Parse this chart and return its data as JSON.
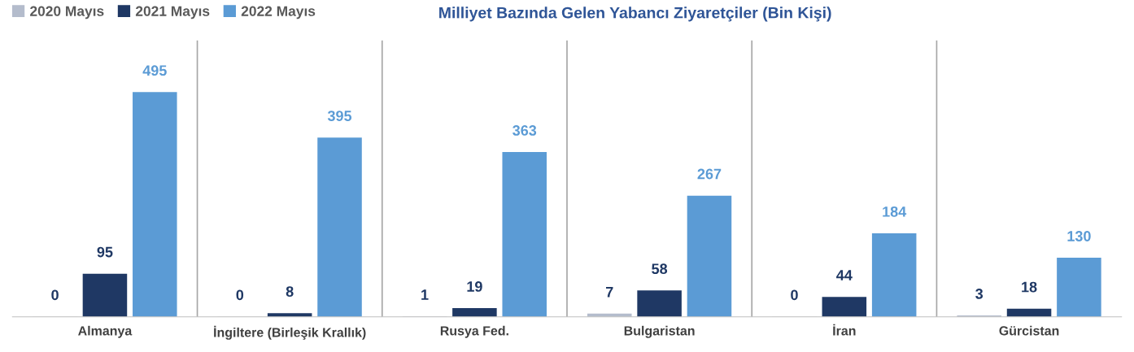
{
  "chart_data": {
    "type": "bar",
    "title": "Milliyet Bazında Gelen Yabancı Ziyaretçiler (Bin Kişi)",
    "categories": [
      "Almanya",
      "İngiltere (Birleşik Krallık)",
      "Rusya Fed.",
      "Bulgaristan",
      "İran",
      "Gürcistan"
    ],
    "series": [
      {
        "name": "2020 Mayıs",
        "color": "#b4bccc",
        "values": [
          0.4,
          0.4,
          1,
          7,
          0.4,
          3
        ],
        "value_labels": [
          "0",
          "0",
          "1",
          "7",
          "0",
          "3"
        ]
      },
      {
        "name": "2021 Mayıs",
        "color": "#1f3864",
        "values": [
          95,
          8,
          19,
          58,
          44,
          18
        ]
      },
      {
        "name": "2022 Mayıs",
        "color": "#5b9bd5",
        "values": [
          495,
          395,
          363,
          267,
          184,
          130
        ]
      }
    ],
    "data_labels": true,
    "grid": "x",
    "legend": "top left"
  }
}
